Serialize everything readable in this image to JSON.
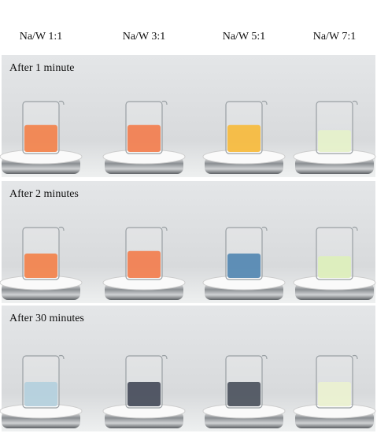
{
  "columns": [
    "Na/W 1:1",
    "Na/W 3:1",
    "Na/W 5:1",
    "Na/W 7:1"
  ],
  "rows": [
    {
      "label": "After 1 minute"
    },
    {
      "label": "After 2 minutes"
    },
    {
      "label": "After 30 minutes"
    }
  ]
}
